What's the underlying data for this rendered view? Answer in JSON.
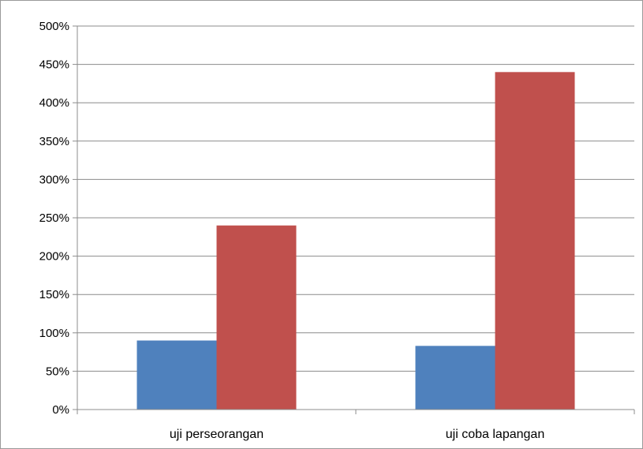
{
  "chart_data": {
    "type": "bar",
    "title": "",
    "xlabel": "",
    "ylabel": "",
    "categories": [
      "uji perseorangan",
      "uji coba lapangan"
    ],
    "series": [
      {
        "values": [
          90,
          83
        ],
        "color": "#4f81bd"
      },
      {
        "values": [
          240,
          440
        ],
        "color": "#c0504d"
      }
    ],
    "y_ticks": [
      "0%",
      "50%",
      "100%",
      "150%",
      "200%",
      "250%",
      "300%",
      "350%",
      "400%",
      "450%",
      "500%"
    ],
    "ylim": [
      0,
      500
    ],
    "y_unit": "%",
    "grid": true,
    "legend": "none"
  }
}
